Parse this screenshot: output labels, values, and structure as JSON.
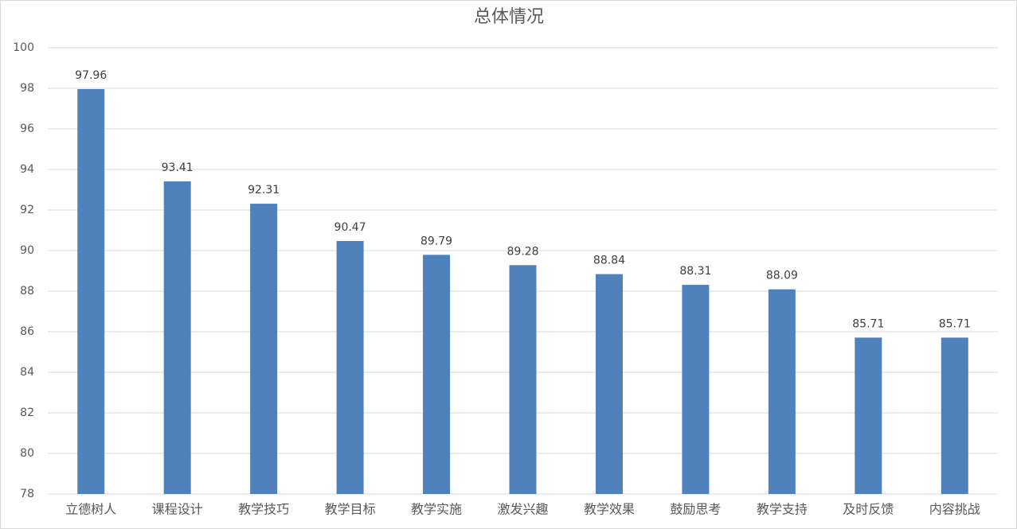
{
  "chart_data": {
    "type": "bar",
    "title": "总体情况",
    "categories": [
      "立德树人",
      "课程设计",
      "教学技巧",
      "教学目标",
      "教学实施",
      "激发兴趣",
      "教学效果",
      "鼓励思考",
      "教学支持",
      "及时反馈",
      "内容挑战"
    ],
    "values": [
      97.96,
      93.41,
      92.31,
      90.47,
      89.79,
      89.28,
      88.84,
      88.31,
      88.09,
      85.71,
      85.71
    ],
    "color": "#4f81bd",
    "ylim": [
      78,
      100
    ],
    "yticks": [
      78,
      80,
      82,
      84,
      86,
      88,
      90,
      92,
      94,
      96,
      98,
      100
    ],
    "grid": true,
    "data_labels": true
  }
}
